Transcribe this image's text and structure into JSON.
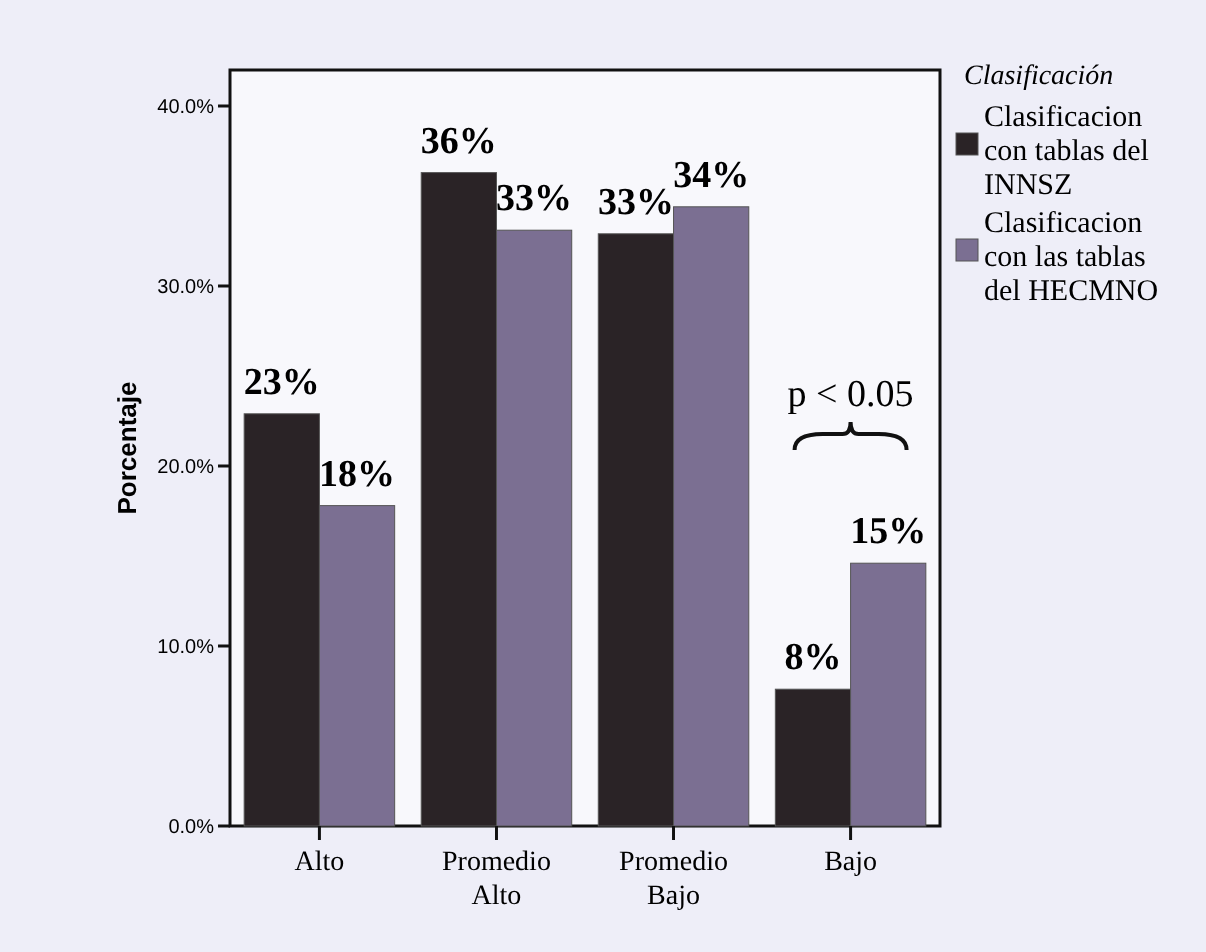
{
  "chart_data": {
    "type": "bar",
    "ylabel": "Porcentaje",
    "legend_title": "Clasificación",
    "categories": [
      "Alto",
      "Promedio Alto",
      "Promedio Bajo",
      "Bajo"
    ],
    "series": [
      {
        "name": "Clasificacion con tablas del INNSZ",
        "color": "#2a2326",
        "values": [
          22.9,
          36.3,
          32.9,
          7.6
        ],
        "value_labels": [
          "23%",
          "36%",
          "33%",
          "8%"
        ]
      },
      {
        "name": "Clasificacion con las tablas del HECMNO",
        "color": "#7b6f92",
        "values": [
          17.8,
          33.1,
          34.4,
          14.6
        ],
        "value_labels": [
          "18%",
          "33%",
          "34%",
          "15%"
        ]
      }
    ],
    "ylim": [
      0,
      42
    ],
    "yticks": [
      {
        "value": 0,
        "label": "0.0%"
      },
      {
        "value": 10,
        "label": "10.0%"
      },
      {
        "value": 20,
        "label": "20.0%"
      },
      {
        "value": 30,
        "label": "30.0%"
      },
      {
        "value": 40,
        "label": "40.0%"
      }
    ],
    "grid": false,
    "legend": "right",
    "annotations": [
      "p < 0.05"
    ]
  }
}
